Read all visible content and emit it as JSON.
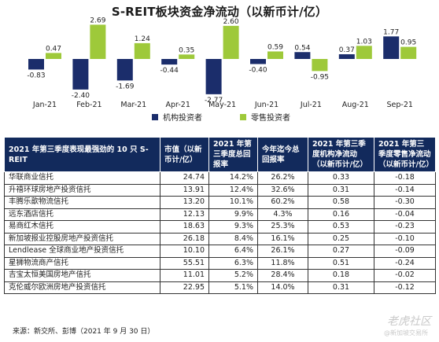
{
  "chart_data": {
    "type": "bar",
    "title": "S-REIT板块资金净流动（以新币计/亿）",
    "categories": [
      "Jan-21",
      "Feb-21",
      "Mar-21",
      "Apr-21",
      "May-21",
      "Jun-21",
      "Jul-21",
      "Aug-21",
      "Sep-21"
    ],
    "series": [
      {
        "name": "机构投资者",
        "color": "#1b2d6b",
        "values": [
          -0.83,
          -2.4,
          -1.69,
          -0.44,
          -2.77,
          -0.4,
          0.54,
          0.37,
          1.77
        ],
        "labels": [
          "-0.83",
          "-2.40",
          "-1.69",
          "-0.44",
          "-2.77",
          "-0.40",
          "0.54",
          "0.37",
          "1.77"
        ]
      },
      {
        "name": "零售投资者",
        "color": "#9ec93a",
        "values": [
          0.47,
          2.69,
          1.24,
          0.35,
          2.6,
          0.59,
          -0.95,
          1.03,
          0.95
        ],
        "labels": [
          "0.47",
          "2.69",
          "1.24",
          "0.35",
          "2.60",
          "0.59",
          "-0.95",
          "1.03",
          "0.95"
        ]
      }
    ],
    "legend_position": "bottom",
    "grid": false
  },
  "table": {
    "headers": [
      "2021 年第三季度表现最强劲的 10 只 S-REIT",
      "市值（以新币计/亿）",
      "2021 年第三季度总回报率",
      "今年迄今总回报率",
      "2021 年第三季度机构净流动（以新币计/亿）",
      "2021 年第三季度零售净流动（以新币计/亿）"
    ],
    "rows": [
      [
        "华联商业信托",
        "24.74",
        "14.2%",
        "26.2%",
        "0.33",
        "-0.18"
      ],
      [
        "升禧环球房地产投资信托",
        "13.91",
        "12.4%",
        "32.6%",
        "0.31",
        "-0.14"
      ],
      [
        "丰腾乐歆物流信托",
        "13.20",
        "10.1%",
        "60.2%",
        "0.58",
        "-0.30"
      ],
      [
        "远东酒店信托",
        "12.13",
        "9.9%",
        "4.3%",
        "0.16",
        "-0.04"
      ],
      [
        "易商红木信托",
        "18.63",
        "9.3%",
        "25.3%",
        "0.53",
        "-0.23"
      ],
      [
        "新加坡报业控股房地产投资信托",
        "26.18",
        "8.4%",
        "16.1%",
        "0.25",
        "-0.10"
      ],
      [
        "Lendlease 全球商业地产投资信托",
        "10.10",
        "6.4%",
        "26.1%",
        "0.27",
        "-0.09"
      ],
      [
        "星狮物流商产信托",
        "55.51",
        "6.3%",
        "11.8%",
        "0.51",
        "-0.24"
      ],
      [
        "吉宝太恒美国房地产信托",
        "11.01",
        "5.2%",
        "28.4%",
        "0.18",
        "-0.02"
      ],
      [
        "克伦威尔欧洲房地产投资信托",
        "22.95",
        "5.1%",
        "14.0%",
        "0.31",
        "-0.12"
      ]
    ]
  },
  "source": "来源：新交所、彭博（2021 年 9 月 30 日）",
  "watermark": {
    "main": "老虎社区",
    "sub": "@新加坡交易所"
  }
}
